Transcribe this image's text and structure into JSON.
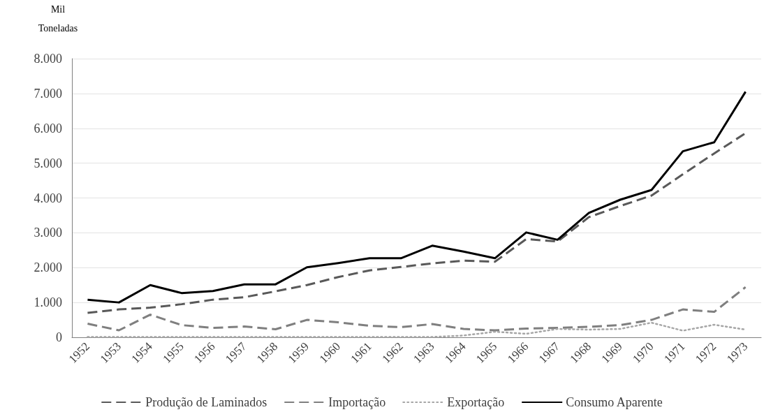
{
  "chart_data": {
    "type": "line",
    "ylabel": "Mil Toneladas",
    "categories": [
      "1952",
      "1953",
      "1954",
      "1955",
      "1956",
      "1957",
      "1958",
      "1959",
      "1960",
      "1961",
      "1962",
      "1963",
      "1964",
      "1965",
      "1966",
      "1967",
      "1968",
      "1969",
      "1970",
      "1971",
      "1972",
      "1973"
    ],
    "series": [
      {
        "name": "Produção de Laminados",
        "color": "#595959",
        "line_style": "dashed",
        "values": [
          700,
          800,
          850,
          950,
          1080,
          1150,
          1320,
          1500,
          1730,
          1920,
          2020,
          2120,
          2200,
          2170,
          2820,
          2750,
          3450,
          3770,
          4070,
          4680,
          5280,
          5860
        ]
      },
      {
        "name": "Importação",
        "color": "#7f7f7f",
        "line_style": "dashed",
        "values": [
          390,
          200,
          650,
          350,
          270,
          310,
          230,
          500,
          430,
          330,
          290,
          380,
          240,
          200,
          250,
          270,
          300,
          350,
          500,
          800,
          730,
          1440
        ]
      },
      {
        "name": "Exportação",
        "color": "#a6a6a6",
        "line_style": "dotted",
        "values": [
          10,
          10,
          10,
          10,
          10,
          10,
          10,
          10,
          10,
          10,
          10,
          10,
          50,
          160,
          100,
          240,
          220,
          240,
          420,
          190,
          360,
          220
        ]
      },
      {
        "name": "Consumo Aparente",
        "color": "#000000",
        "line_style": "solid",
        "values": [
          1080,
          1000,
          1500,
          1270,
          1330,
          1520,
          1520,
          2010,
          2130,
          2270,
          2270,
          2630,
          2460,
          2270,
          3010,
          2800,
          3570,
          3950,
          4230,
          5340,
          5600,
          7050
        ]
      }
    ],
    "ylim": [
      0,
      8000
    ],
    "yticks": [
      0,
      {
        "value": 1000,
        "label": "1.000"
      },
      {
        "value": 2000,
        "label": "2.000"
      },
      {
        "value": 3000,
        "label": "3.000"
      },
      {
        "value": 4000,
        "label": "4.000"
      },
      {
        "value": 5000,
        "label": "5.000"
      },
      {
        "value": 6000,
        "label": "6.000"
      },
      {
        "value": 7000,
        "label": "7.000"
      },
      {
        "value": 8000,
        "label": "8.000"
      }
    ],
    "grid": "y",
    "legend": "bottom",
    "marker": "none"
  }
}
